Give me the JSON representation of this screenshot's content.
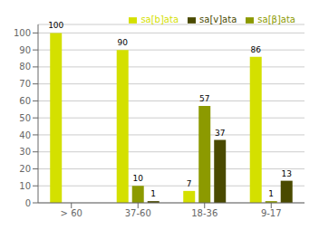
{
  "chart_data": {
    "type": "bar",
    "categories": [
      "> 60",
      "37-60",
      "18-36",
      "9-17"
    ],
    "series": [
      {
        "name": "sa[b]ata",
        "color": "#d4e000",
        "values": [
          100,
          90,
          7,
          86
        ]
      },
      {
        "name": "sa[β]ata",
        "color": "#8c9a00",
        "values": [
          0,
          10,
          57,
          1
        ]
      },
      {
        "name": "sa[v]ata",
        "color": "#4a4a00",
        "values": [
          0,
          1,
          37,
          13
        ]
      }
    ],
    "ylim": [
      0,
      105
    ],
    "yticks": [
      0,
      10,
      20,
      30,
      40,
      50,
      60,
      70,
      80,
      90,
      100
    ],
    "grid": true,
    "legend": "upper right",
    "data_labels": true
  }
}
